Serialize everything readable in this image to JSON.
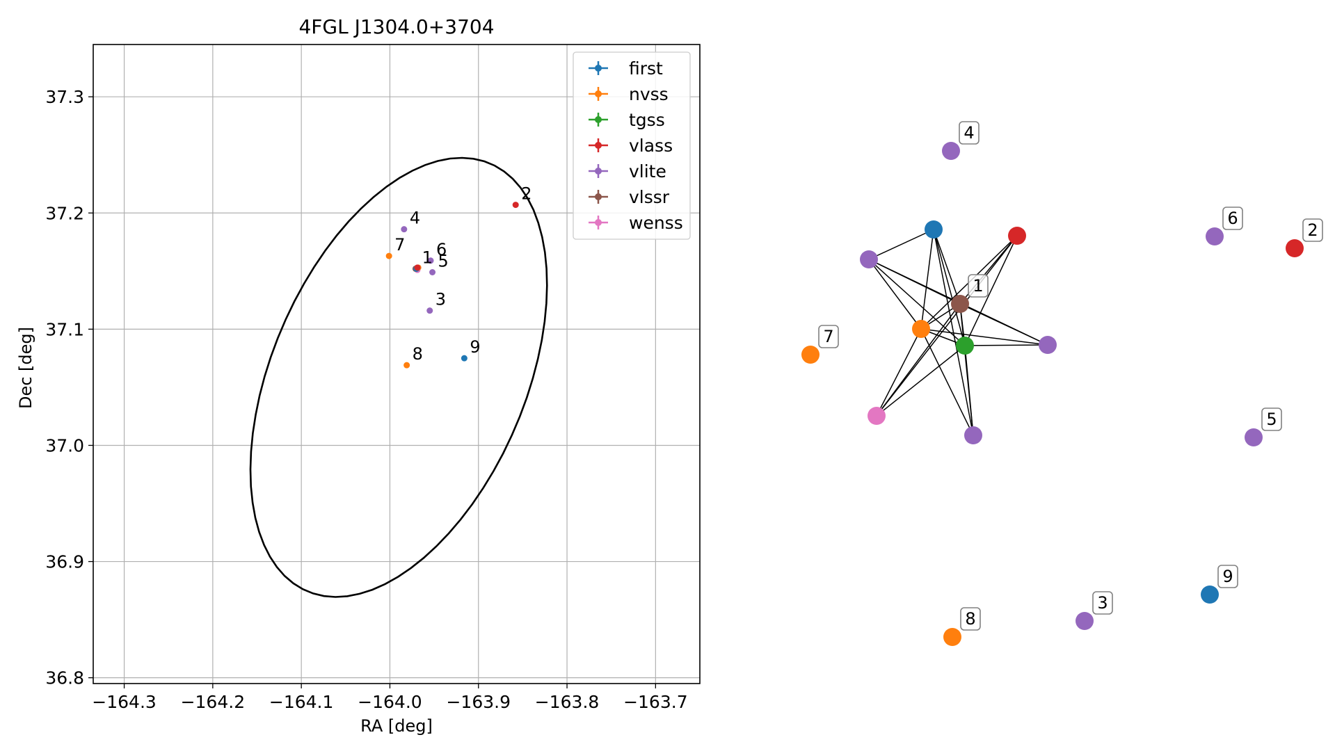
{
  "colors": {
    "first": "#1f77b4",
    "nvss": "#ff7f0e",
    "tgss": "#2ca02c",
    "vlass": "#d62728",
    "vlite": "#9467bd",
    "vlssr": "#8c564b",
    "wenss": "#e377c2"
  },
  "chart_data": [
    {
      "type": "scatter",
      "title": "4FGL J1304.0+3704",
      "xlabel": "RA [deg]",
      "ylabel": "Dec [deg]",
      "xlim": [
        -164.335,
        -163.65
      ],
      "ylim": [
        36.795,
        37.345
      ],
      "xticks": [
        -164.3,
        -164.2,
        -164.1,
        -164.0,
        -163.9,
        -163.8,
        -163.7
      ],
      "xtick_labels": [
        "−164.3",
        "−164.2",
        "−164.1",
        "−164.0",
        "−163.9",
        "−163.8",
        "−163.7"
      ],
      "yticks": [
        36.8,
        36.9,
        37.0,
        37.1,
        37.2,
        37.3
      ],
      "ytick_labels": [
        "36.8",
        "36.9",
        "37.0",
        "37.1",
        "37.2",
        "37.3"
      ],
      "grid": true,
      "legend": {
        "placement": "top-right",
        "entries": [
          "first",
          "nvss",
          "tgss",
          "vlass",
          "vlite",
          "vlssr",
          "wenss"
        ]
      },
      "ellipse": {
        "center": [
          -163.99,
          37.0585
        ],
        "semi_major_deg": 0.214,
        "semi_minor_deg": 0.134,
        "angle_deg": 53
      },
      "points": [
        {
          "label": "1",
          "survey": "tgss",
          "ra": -163.97,
          "dec": 37.152
        },
        {
          "label": "",
          "survey": "wenss",
          "ra": -163.969,
          "dec": 37.151
        },
        {
          "label": "",
          "survey": "vlssr",
          "ra": -163.971,
          "dec": 37.152
        },
        {
          "label": "",
          "survey": "nvss",
          "ra": -163.968,
          "dec": 37.153
        },
        {
          "label": "",
          "survey": "first",
          "ra": -163.97,
          "dec": 37.152
        },
        {
          "label": "",
          "survey": "vlass",
          "ra": -163.969,
          "dec": 37.153
        },
        {
          "label": "2",
          "survey": "vlass",
          "ra": -163.858,
          "dec": 37.207
        },
        {
          "label": "3",
          "survey": "vlite",
          "ra": -163.955,
          "dec": 37.116
        },
        {
          "label": "4",
          "survey": "vlite",
          "ra": -163.984,
          "dec": 37.186
        },
        {
          "label": "5",
          "survey": "vlite",
          "ra": -163.952,
          "dec": 37.149
        },
        {
          "label": "6",
          "survey": "vlite",
          "ra": -163.954,
          "dec": 37.159
        },
        {
          "label": "7",
          "survey": "nvss",
          "ra": -164.001,
          "dec": 37.163
        },
        {
          "label": "8",
          "survey": "nvss",
          "ra": -163.981,
          "dec": 37.069
        },
        {
          "label": "9",
          "survey": "first",
          "ra": -163.916,
          "dec": 37.075
        }
      ]
    },
    {
      "type": "network",
      "title": "",
      "nodes": [
        {
          "id": "first_c",
          "survey": "first",
          "label": ""
        },
        {
          "id": "vlass_c",
          "survey": "vlass",
          "label": ""
        },
        {
          "id": "vlite_a",
          "survey": "vlite",
          "label": ""
        },
        {
          "id": "vlssr_c",
          "survey": "vlssr",
          "label": "1"
        },
        {
          "id": "nvss_c",
          "survey": "nvss",
          "label": ""
        },
        {
          "id": "tgss_c",
          "survey": "tgss",
          "label": ""
        },
        {
          "id": "vlite_b",
          "survey": "vlite",
          "label": ""
        },
        {
          "id": "wenss_c",
          "survey": "wenss",
          "label": ""
        },
        {
          "id": "vlite_c",
          "survey": "vlite",
          "label": ""
        },
        {
          "id": "n4",
          "survey": "vlite",
          "label": "4"
        },
        {
          "id": "n6",
          "survey": "vlite",
          "label": "6"
        },
        {
          "id": "n2",
          "survey": "vlass",
          "label": "2"
        },
        {
          "id": "n7",
          "survey": "nvss",
          "label": "7"
        },
        {
          "id": "n5",
          "survey": "vlite",
          "label": "5"
        },
        {
          "id": "n9",
          "survey": "first",
          "label": "9"
        },
        {
          "id": "n3",
          "survey": "vlite",
          "label": "3"
        },
        {
          "id": "n8",
          "survey": "nvss",
          "label": "8"
        }
      ],
      "edges": [
        [
          "first_c",
          "vlite_a"
        ],
        [
          "first_c",
          "vlssr_c"
        ],
        [
          "first_c",
          "nvss_c"
        ],
        [
          "first_c",
          "tgss_c"
        ],
        [
          "first_c",
          "vlite_c"
        ],
        [
          "vlass_c",
          "vlssr_c"
        ],
        [
          "vlass_c",
          "nvss_c"
        ],
        [
          "vlass_c",
          "tgss_c"
        ],
        [
          "vlass_c",
          "wenss_c"
        ],
        [
          "vlite_a",
          "vlssr_c"
        ],
        [
          "vlite_a",
          "nvss_c"
        ],
        [
          "vlite_a",
          "tgss_c"
        ],
        [
          "vlite_a",
          "vlite_b"
        ],
        [
          "vlssr_c",
          "nvss_c"
        ],
        [
          "vlssr_c",
          "tgss_c"
        ],
        [
          "vlssr_c",
          "wenss_c"
        ],
        [
          "vlssr_c",
          "vlite_b"
        ],
        [
          "vlssr_c",
          "vlite_c"
        ],
        [
          "nvss_c",
          "tgss_c"
        ],
        [
          "nvss_c",
          "vlite_b"
        ],
        [
          "nvss_c",
          "wenss_c"
        ],
        [
          "nvss_c",
          "vlite_c"
        ],
        [
          "tgss_c",
          "vlite_b"
        ],
        [
          "tgss_c",
          "wenss_c"
        ],
        [
          "tgss_c",
          "vlite_c"
        ]
      ]
    }
  ]
}
